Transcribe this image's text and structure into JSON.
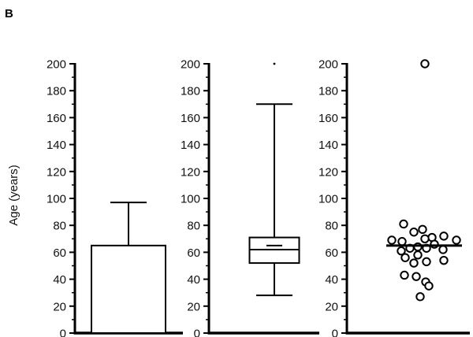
{
  "panel_label": "B",
  "chart_data": [
    {
      "type": "bar",
      "ylabel": "Age (years)",
      "ylim": [
        0,
        200
      ],
      "yticks": [
        0,
        20,
        40,
        60,
        80,
        100,
        120,
        140,
        160,
        180,
        200
      ],
      "bar": {
        "value": 65,
        "error_upper": 97
      }
    },
    {
      "type": "box",
      "ylabel": "",
      "ylim": [
        0,
        200
      ],
      "yticks": [
        0,
        20,
        40,
        60,
        80,
        100,
        120,
        140,
        160,
        180,
        200
      ],
      "box": {
        "whisker_low": 28,
        "q1": 52,
        "median": 62,
        "mean": 65,
        "q3": 71,
        "whisker_high": 170,
        "outliers": [
          200
        ]
      }
    },
    {
      "type": "scatter",
      "ylabel": "",
      "ylim": [
        0,
        200
      ],
      "yticks": [
        0,
        20,
        40,
        60,
        80,
        100,
        120,
        140,
        160,
        180,
        200
      ],
      "mean_line": 65,
      "points": [
        200,
        81,
        77,
        75,
        72,
        71,
        70,
        69,
        69,
        68,
        66,
        64,
        63,
        63,
        62,
        61,
        58,
        56,
        54,
        53,
        52,
        43,
        42,
        38,
        35,
        27
      ]
    }
  ]
}
